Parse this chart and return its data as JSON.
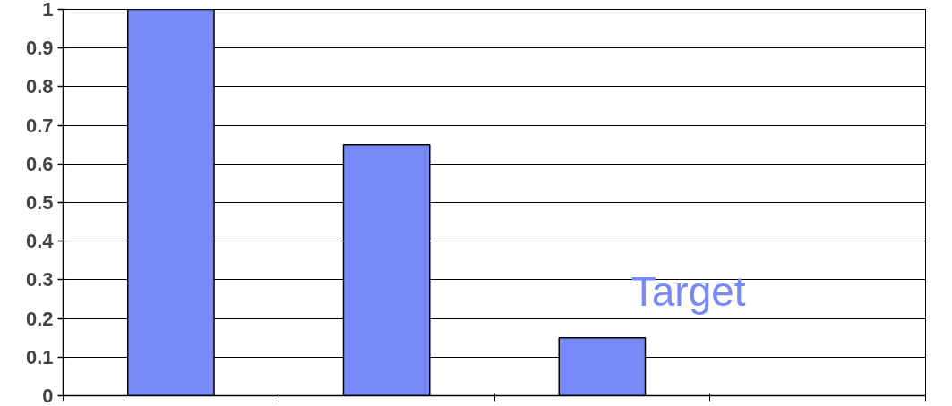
{
  "chart_data": {
    "type": "bar",
    "categories": [
      null,
      null,
      null,
      null
    ],
    "values": [
      1.0,
      0.65,
      0.15,
      null
    ],
    "color": "#7788f8",
    "ylim": [
      0,
      1
    ],
    "yticks": [
      0,
      0.1,
      0.2,
      0.3,
      0.4,
      0.5,
      0.6,
      0.7,
      0.8,
      0.9,
      1
    ],
    "grid": "y",
    "annotations": [
      "Target"
    ]
  }
}
